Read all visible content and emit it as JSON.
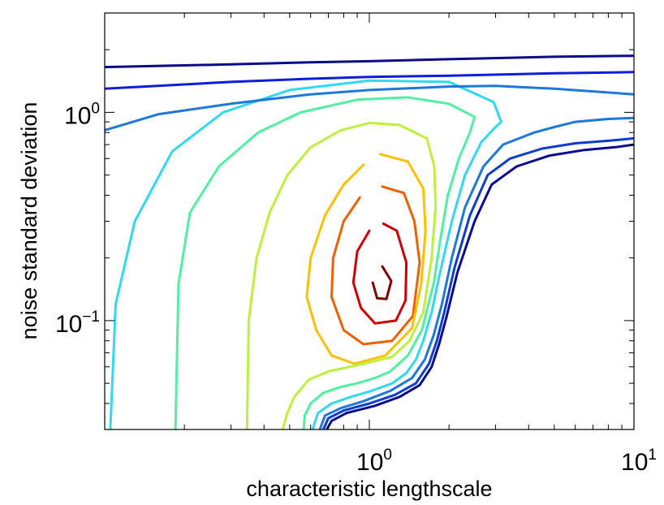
{
  "chart_data": {
    "type": "contour",
    "title": "",
    "xlabel": "characteristic lengthscale",
    "ylabel": "noise standard deviation",
    "xscale": "log",
    "yscale": "log",
    "xlim": [
      0.1,
      10
    ],
    "ylim": [
      0.03,
      3
    ],
    "grid": false,
    "legend": "none",
    "x_ticks": [
      {
        "value": 1,
        "base": "10",
        "exp": "0"
      },
      {
        "value": 10,
        "base": "10",
        "exp": "1"
      }
    ],
    "y_ticks": [
      {
        "value": 1,
        "base": "10",
        "exp": "0"
      },
      {
        "value": 0.1,
        "base": "10",
        "exp": "−1"
      }
    ],
    "series": [
      {
        "color": "#800000",
        "points": [
          [
            1.12,
            0.182
          ],
          [
            1.21,
            0.155
          ],
          [
            1.16,
            0.127
          ],
          [
            1.07,
            0.128
          ],
          [
            1.03,
            0.152
          ]
        ]
      },
      {
        "color": "#cc0000",
        "points": [
          [
            1.13,
            0.292
          ],
          [
            1.27,
            0.27
          ],
          [
            1.38,
            0.19
          ],
          [
            1.37,
            0.125
          ],
          [
            1.26,
            0.1
          ],
          [
            1.05,
            0.097
          ],
          [
            0.93,
            0.115
          ],
          [
            0.87,
            0.152
          ],
          [
            0.9,
            0.215
          ],
          [
            1.0,
            0.27
          ]
        ]
      },
      {
        "color": "#f06000",
        "points": [
          [
            1.12,
            0.44
          ],
          [
            1.35,
            0.41
          ],
          [
            1.48,
            0.3
          ],
          [
            1.55,
            0.19
          ],
          [
            1.46,
            0.105
          ],
          [
            1.22,
            0.08
          ],
          [
            0.95,
            0.077
          ],
          [
            0.8,
            0.09
          ],
          [
            0.72,
            0.13
          ],
          [
            0.73,
            0.2
          ],
          [
            0.8,
            0.3
          ],
          [
            0.92,
            0.39
          ]
        ]
      },
      {
        "color": "#ffc000",
        "points": [
          [
            1.1,
            0.63
          ],
          [
            1.4,
            0.58
          ],
          [
            1.6,
            0.43
          ],
          [
            1.63,
            0.27
          ],
          [
            1.57,
            0.15
          ],
          [
            1.45,
            0.092
          ],
          [
            1.15,
            0.068
          ],
          [
            0.88,
            0.062
          ],
          [
            0.72,
            0.068
          ],
          [
            0.63,
            0.09
          ],
          [
            0.58,
            0.13
          ],
          [
            0.6,
            0.2
          ],
          [
            0.68,
            0.32
          ],
          [
            0.8,
            0.45
          ],
          [
            0.95,
            0.56
          ]
        ]
      },
      {
        "color": "#bef040",
        "points": [
          [
            0.47,
            0.03
          ],
          [
            0.49,
            0.036
          ],
          [
            0.52,
            0.043
          ],
          [
            0.59,
            0.052
          ],
          [
            0.7,
            0.057
          ],
          [
            0.95,
            0.062
          ],
          [
            1.22,
            0.067
          ],
          [
            1.42,
            0.08
          ],
          [
            1.6,
            0.11
          ],
          [
            1.72,
            0.2
          ],
          [
            1.78,
            0.35
          ],
          [
            1.76,
            0.55
          ],
          [
            1.65,
            0.75
          ],
          [
            1.3,
            0.87
          ],
          [
            1.0,
            0.89
          ],
          [
            0.78,
            0.82
          ],
          [
            0.6,
            0.68
          ],
          [
            0.49,
            0.5
          ],
          [
            0.42,
            0.33
          ],
          [
            0.375,
            0.2
          ],
          [
            0.35,
            0.1
          ],
          [
            0.345,
            0.03
          ]
        ]
      },
      {
        "color": "#50f0a0",
        "points": [
          [
            0.565,
            0.03
          ],
          [
            0.57,
            0.035
          ],
          [
            0.6,
            0.04
          ],
          [
            0.67,
            0.045
          ],
          [
            0.78,
            0.048
          ],
          [
            0.9,
            0.05
          ],
          [
            1.05,
            0.053
          ],
          [
            1.2,
            0.057
          ],
          [
            1.4,
            0.068
          ],
          [
            1.58,
            0.09
          ],
          [
            1.75,
            0.15
          ],
          [
            1.86,
            0.25
          ],
          [
            1.98,
            0.4
          ],
          [
            2.18,
            0.6
          ],
          [
            2.4,
            0.8
          ],
          [
            2.5,
            0.95
          ],
          [
            2.0,
            1.1
          ],
          [
            1.4,
            1.18
          ],
          [
            0.9,
            1.15
          ],
          [
            0.55,
            1.0
          ],
          [
            0.38,
            0.8
          ],
          [
            0.27,
            0.55
          ],
          [
            0.21,
            0.33
          ],
          [
            0.19,
            0.15
          ],
          [
            0.185,
            0.03
          ]
        ]
      },
      {
        "color": "#30d8f0",
        "points": [
          [
            0.61,
            0.03
          ],
          [
            0.64,
            0.036
          ],
          [
            0.72,
            0.04
          ],
          [
            0.85,
            0.043
          ],
          [
            1.02,
            0.046
          ],
          [
            1.22,
            0.05
          ],
          [
            1.38,
            0.056
          ],
          [
            1.5,
            0.065
          ],
          [
            1.6,
            0.08
          ],
          [
            1.72,
            0.11
          ],
          [
            1.85,
            0.17
          ],
          [
            2.05,
            0.3
          ],
          [
            2.3,
            0.5
          ],
          [
            2.65,
            0.72
          ],
          [
            3.0,
            0.85
          ],
          [
            3.15,
            0.9
          ],
          [
            2.95,
            1.12
          ],
          [
            2.0,
            1.4
          ],
          [
            1.0,
            1.42
          ],
          [
            0.5,
            1.28
          ],
          [
            0.28,
            1.0
          ],
          [
            0.18,
            0.65
          ],
          [
            0.13,
            0.3
          ],
          [
            0.11,
            0.12
          ],
          [
            0.105,
            0.03
          ]
        ]
      },
      {
        "color": "#1e78dc",
        "points": [
          [
            0.65,
            0.03
          ],
          [
            0.68,
            0.035
          ],
          [
            0.78,
            0.038
          ],
          [
            0.95,
            0.041
          ],
          [
            1.2,
            0.046
          ],
          [
            1.45,
            0.053
          ],
          [
            1.62,
            0.065
          ],
          [
            1.75,
            0.085
          ],
          [
            1.88,
            0.12
          ],
          [
            2.05,
            0.2
          ],
          [
            2.3,
            0.35
          ],
          [
            2.7,
            0.55
          ],
          [
            3.2,
            0.7
          ],
          [
            4.2,
            0.8
          ],
          [
            5.0,
            0.85
          ],
          [
            6.0,
            0.9
          ],
          [
            8.0,
            0.93
          ],
          [
            10,
            0.94
          ]
        ]
      },
      {
        "color": "#1e78dc",
        "points": [
          [
            0.1,
            0.82
          ],
          [
            0.16,
            0.98
          ],
          [
            0.3,
            1.1
          ],
          [
            0.6,
            1.22
          ],
          [
            1.0,
            1.28
          ],
          [
            2.0,
            1.33
          ],
          [
            3.0,
            1.34
          ],
          [
            5.0,
            1.3
          ],
          [
            10,
            1.22
          ]
        ]
      },
      {
        "color": "#0c3cd2",
        "points": [
          [
            0.67,
            0.03
          ],
          [
            0.7,
            0.034
          ],
          [
            0.8,
            0.037
          ],
          [
            1.0,
            0.04
          ],
          [
            1.25,
            0.044
          ],
          [
            1.5,
            0.05
          ],
          [
            1.68,
            0.062
          ],
          [
            1.8,
            0.08
          ],
          [
            1.92,
            0.11
          ],
          [
            2.1,
            0.18
          ],
          [
            2.4,
            0.32
          ],
          [
            2.8,
            0.5
          ],
          [
            3.4,
            0.6
          ],
          [
            4.5,
            0.67
          ],
          [
            6.0,
            0.71
          ],
          [
            8.0,
            0.73
          ],
          [
            10,
            0.75
          ]
        ]
      },
      {
        "color": "#0c1edc",
        "points": [
          [
            0.1,
            1.3
          ],
          [
            0.3,
            1.4
          ],
          [
            0.6,
            1.45
          ],
          [
            1.0,
            1.48
          ],
          [
            2.0,
            1.5
          ],
          [
            5.0,
            1.54
          ],
          [
            10,
            1.56
          ]
        ]
      },
      {
        "color": "#0a0a96",
        "points": [
          [
            0.69,
            0.03
          ],
          [
            0.72,
            0.033
          ],
          [
            0.82,
            0.036
          ],
          [
            1.05,
            0.039
          ],
          [
            1.3,
            0.043
          ],
          [
            1.55,
            0.049
          ],
          [
            1.72,
            0.06
          ],
          [
            1.84,
            0.078
          ],
          [
            1.96,
            0.105
          ],
          [
            2.15,
            0.17
          ],
          [
            2.5,
            0.3
          ],
          [
            2.9,
            0.45
          ],
          [
            3.6,
            0.55
          ],
          [
            4.8,
            0.62
          ],
          [
            6.5,
            0.66
          ],
          [
            8.5,
            0.68
          ],
          [
            10,
            0.7
          ]
        ]
      },
      {
        "color": "#0a0a8c",
        "points": [
          [
            0.1,
            1.65
          ],
          [
            0.3,
            1.7
          ],
          [
            0.6,
            1.74
          ],
          [
            1.0,
            1.76
          ],
          [
            2.0,
            1.8
          ],
          [
            5.0,
            1.85
          ],
          [
            10,
            1.87
          ]
        ]
      }
    ]
  }
}
